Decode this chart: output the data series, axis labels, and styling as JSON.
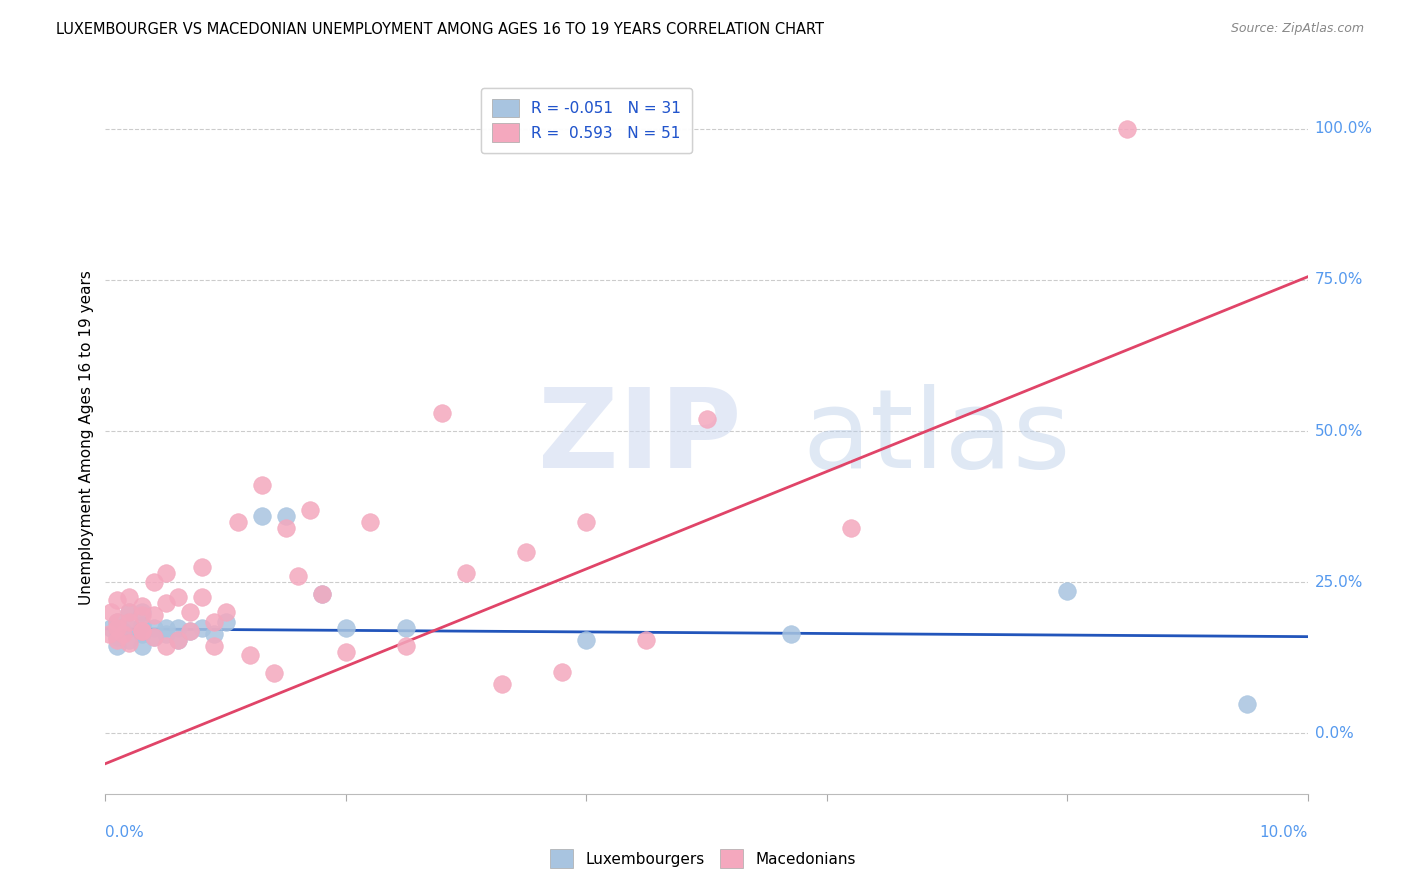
{
  "title": "LUXEMBOURGER VS MACEDONIAN UNEMPLOYMENT AMONG AGES 16 TO 19 YEARS CORRELATION CHART",
  "source": "Source: ZipAtlas.com",
  "ylabel": "Unemployment Among Ages 16 to 19 years",
  "ytick_labels": [
    "100.0%",
    "75.0%",
    "50.0%",
    "25.0%",
    "0.0%"
  ],
  "ytick_values": [
    1.0,
    0.75,
    0.5,
    0.25,
    0.0
  ],
  "lux_legend": "R = -0.051   N = 31",
  "mac_legend": "R =  0.593   N = 51",
  "lux_color": "#a8c4e0",
  "mac_color": "#f4a8be",
  "lux_line_color": "#2255bb",
  "mac_line_color": "#e04468",
  "xlim": [
    0.0,
    0.1
  ],
  "ylim": [
    -0.1,
    1.08
  ],
  "lux_x": [
    0.0005,
    0.001,
    0.001,
    0.001,
    0.0015,
    0.002,
    0.002,
    0.002,
    0.003,
    0.003,
    0.003,
    0.003,
    0.004,
    0.004,
    0.005,
    0.005,
    0.006,
    0.006,
    0.007,
    0.008,
    0.009,
    0.01,
    0.013,
    0.015,
    0.018,
    0.02,
    0.025,
    0.04,
    0.057,
    0.08,
    0.095
  ],
  "lux_y": [
    0.175,
    0.16,
    0.185,
    0.145,
    0.17,
    0.2,
    0.155,
    0.175,
    0.165,
    0.18,
    0.145,
    0.2,
    0.175,
    0.16,
    0.165,
    0.175,
    0.175,
    0.155,
    0.17,
    0.175,
    0.165,
    0.185,
    0.36,
    0.36,
    0.23,
    0.175,
    0.175,
    0.155,
    0.165,
    0.235,
    0.048
  ],
  "mac_x": [
    0.0003,
    0.0005,
    0.001,
    0.001,
    0.001,
    0.001,
    0.0015,
    0.002,
    0.002,
    0.002,
    0.002,
    0.003,
    0.003,
    0.003,
    0.003,
    0.004,
    0.004,
    0.004,
    0.005,
    0.005,
    0.005,
    0.006,
    0.006,
    0.007,
    0.007,
    0.008,
    0.008,
    0.009,
    0.009,
    0.01,
    0.011,
    0.012,
    0.013,
    0.014,
    0.015,
    0.016,
    0.017,
    0.018,
    0.02,
    0.022,
    0.025,
    0.028,
    0.03,
    0.033,
    0.035,
    0.038,
    0.04,
    0.045,
    0.05,
    0.062,
    0.085
  ],
  "mac_y": [
    0.165,
    0.2,
    0.155,
    0.185,
    0.22,
    0.175,
    0.165,
    0.15,
    0.2,
    0.225,
    0.185,
    0.17,
    0.195,
    0.21,
    0.17,
    0.16,
    0.195,
    0.25,
    0.145,
    0.215,
    0.265,
    0.155,
    0.225,
    0.17,
    0.2,
    0.225,
    0.275,
    0.145,
    0.185,
    0.2,
    0.35,
    0.13,
    0.41,
    0.1,
    0.34,
    0.26,
    0.37,
    0.23,
    0.135,
    0.35,
    0.145,
    0.53,
    0.265,
    0.082,
    0.3,
    0.102,
    0.35,
    0.155,
    0.52,
    0.34,
    1.0
  ],
  "mac_line_x0": 0.0,
  "mac_line_y0": -0.05,
  "mac_line_x1": 0.1,
  "mac_line_y1": 0.755,
  "lux_line_x0": 0.0,
  "lux_line_y0": 0.173,
  "lux_line_x1": 0.1,
  "lux_line_y1": 0.16
}
